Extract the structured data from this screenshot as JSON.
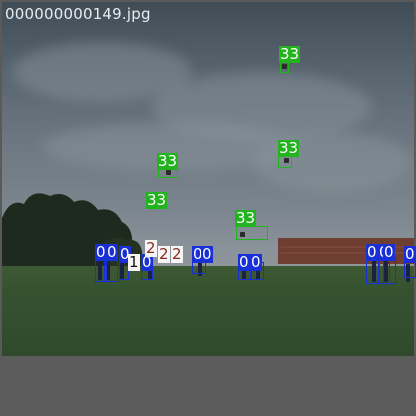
{
  "image": {
    "filename": "000000000149.jpg"
  },
  "colors": {
    "kite_box": "#22b31f",
    "person_box": "#1930d6",
    "misc_box": "#f5f5f5",
    "sky": "#6b7680",
    "grass": "#355230"
  },
  "detections": {
    "kite_labels": [
      "33",
      "33",
      "33",
      "33",
      "33",
      "33"
    ],
    "person_labels": [
      "0",
      "0",
      "0",
      "0",
      "0",
      "0",
      "0",
      "0",
      "0",
      "0",
      "0",
      "0",
      "0",
      "0",
      "0",
      "0"
    ],
    "misc_labels": [
      "1",
      "2",
      "2",
      "2"
    ]
  }
}
